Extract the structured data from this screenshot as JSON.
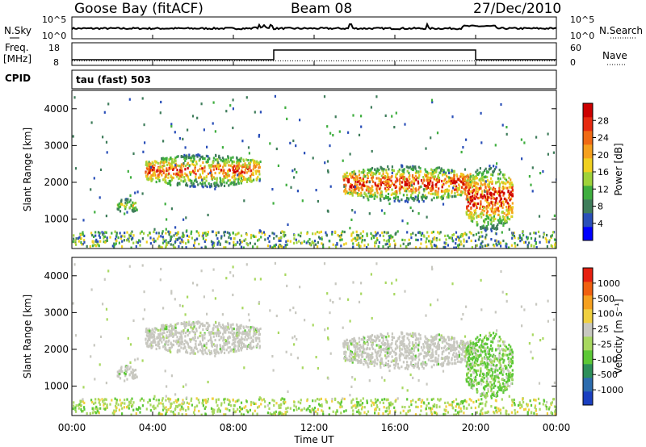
{
  "header": {
    "station": "Goose Bay (fitACF)",
    "beam": "Beam 08",
    "date": "27/Dec/2010"
  },
  "noise_panel": {
    "left_label": "N.Sky",
    "right_label": "N.Search",
    "left_ticks": [
      "10^5",
      "10^0"
    ],
    "right_ticks": [
      "10^5",
      "10^0"
    ]
  },
  "freq_panel": {
    "left_label_line1": "Freq.",
    "left_label_line2": "[MHz]",
    "right_label": "Nave",
    "left_ticks": [
      "18",
      "8"
    ],
    "right_ticks": [
      "60",
      "0"
    ]
  },
  "cpid_label": "CPID",
  "cpid_text": "tau (fast) 503",
  "power_panel": {
    "ylabel": "Slant Range [km]",
    "yticks": [
      "4000",
      "3000",
      "2000",
      "1000"
    ],
    "colorbar_label": "Power [dB]",
    "colorbar_ticks": [
      "28",
      "24",
      "20",
      "16",
      "12",
      "8",
      "4"
    ],
    "colors": [
      "#0000ff",
      "#2a4fb8",
      "#3f7d5b",
      "#3fae3f",
      "#9fd23a",
      "#f0d020",
      "#f5a01e",
      "#f06a14",
      "#e62a10",
      "#cc0000"
    ]
  },
  "velocity_panel": {
    "ylabel": "Slant Range [km]",
    "yticks": [
      "4000",
      "3000",
      "2000",
      "1000"
    ],
    "colorbar_label": "Velocity [m s⁻¹]",
    "colorbar_ticks": [
      "1000",
      "500",
      "100",
      "25",
      "-25",
      "-100",
      "-500",
      "-1000"
    ],
    "colors": [
      "#1a3fc0",
      "#2c6cae",
      "#2d8f5a",
      "#5cc836",
      "#a8d860",
      "#c8c8c0",
      "#f0d040",
      "#f5a020",
      "#f06010",
      "#e62010"
    ]
  },
  "xaxis": {
    "ticks": [
      "00:00",
      "04:00",
      "08:00",
      "12:00",
      "16:00",
      "20:00",
      "00:00"
    ],
    "label": "Time UT"
  },
  "chart_data": {
    "type": "heatmap",
    "title": "Goose Bay (fitACF)",
    "xlabel": "Time UT",
    "ylabel": "Slant Range [km]",
    "xlim": [
      "00:00",
      "24:00"
    ],
    "ylim": [
      200,
      4500
    ],
    "power_scale_dB": [
      0,
      30
    ],
    "velocity_scale_ms": [
      -1000,
      1000
    ],
    "scatter_regions": [
      {
        "start_h": 3.6,
        "end_h": 9.3,
        "range_min_km": 1900,
        "range_max_km": 2800,
        "peak_power_dB": 24,
        "velocity": "ground"
      },
      {
        "start_h": 2.2,
        "end_h": 3.2,
        "range_min_km": 1200,
        "range_max_km": 1600,
        "peak_power_dB": 12,
        "velocity": "ground"
      },
      {
        "start_h": 13.4,
        "end_h": 19.7,
        "range_min_km": 1500,
        "range_max_km": 2500,
        "peak_power_dB": 28,
        "velocity": "ground"
      },
      {
        "start_h": 19.5,
        "end_h": 21.8,
        "range_min_km": 700,
        "range_max_km": 2500,
        "peak_power_dB": 26,
        "velocity": "positive"
      }
    ],
    "frequency_MHz": [
      {
        "start_h": 0,
        "end_h": 10,
        "value": 10
      },
      {
        "start_h": 10,
        "end_h": 20,
        "value": 16
      },
      {
        "start_h": 20,
        "end_h": 24,
        "value": 10
      }
    ],
    "nave": [
      {
        "start_h": 0,
        "end_h": 24,
        "value": 8
      }
    ]
  }
}
